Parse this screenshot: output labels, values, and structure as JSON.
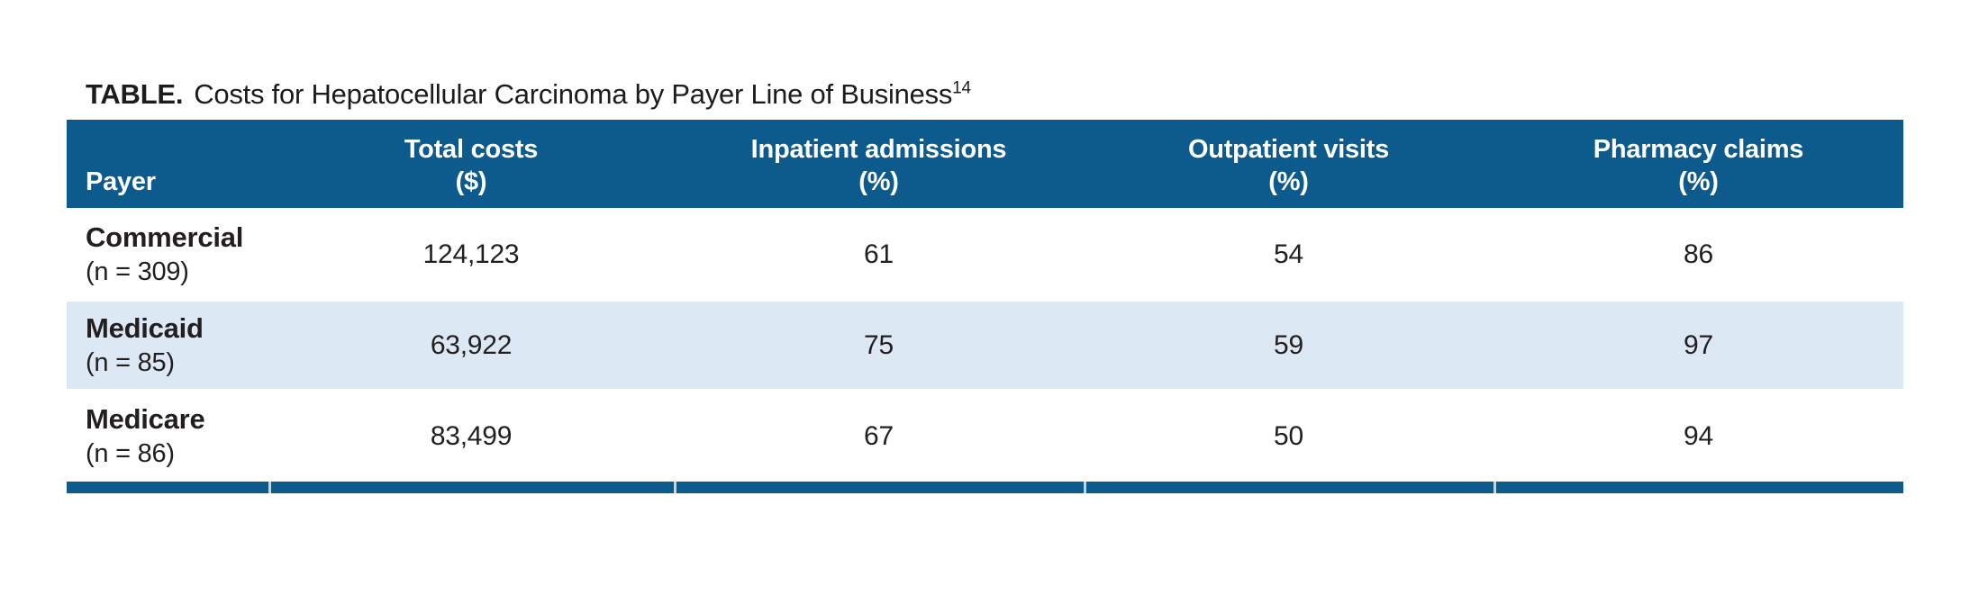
{
  "title": {
    "prefix": "TABLE.",
    "text": "Costs for Hepatocellular Carcinoma by Payer Line of Business",
    "footnote_ref": "14"
  },
  "colors": {
    "header_bg": "#0d5b8c",
    "shaded_row_bg": "#dce8f4",
    "header_text": "#ffffff",
    "body_text": "#231f20"
  },
  "table": {
    "columns": [
      {
        "label": "Payer",
        "unit": ""
      },
      {
        "label": "Total costs",
        "unit": "($)"
      },
      {
        "label": "Inpatient admissions",
        "unit": "(%)"
      },
      {
        "label": "Outpatient visits",
        "unit": "(%)"
      },
      {
        "label": "Pharmacy claims",
        "unit": "(%)"
      }
    ],
    "rows": [
      {
        "payer": "Commercial",
        "n_label": "(n = 309)",
        "total_costs": "124,123",
        "inpatient_admissions": "61",
        "outpatient_visits": "54",
        "pharmacy_claims": "86"
      },
      {
        "payer": "Medicaid",
        "n_label": "(n = 85)",
        "total_costs": "63,922",
        "inpatient_admissions": "75",
        "outpatient_visits": "59",
        "pharmacy_claims": "97"
      },
      {
        "payer": "Medicare",
        "n_label": "(n = 86)",
        "total_costs": "83,499",
        "inpatient_admissions": "67",
        "outpatient_visits": "50",
        "pharmacy_claims": "94"
      }
    ]
  },
  "chart_data": {
    "type": "table",
    "title": "TABLE. Costs for Hepatocellular Carcinoma by Payer Line of Business (footnote 14)",
    "columns": [
      "Payer",
      "Total costs ($)",
      "Inpatient admissions (%)",
      "Outpatient visits (%)",
      "Pharmacy claims (%)"
    ],
    "rows": [
      [
        "Commercial (n = 309)",
        124123,
        61,
        54,
        86
      ],
      [
        "Medicaid (n = 85)",
        63922,
        75,
        59,
        97
      ],
      [
        "Medicare (n = 86)",
        83499,
        67,
        50,
        94
      ]
    ]
  }
}
